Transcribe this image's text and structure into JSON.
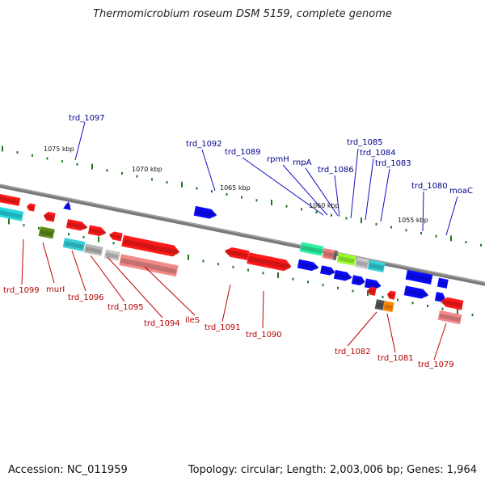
{
  "title": "Thermomicrobium roseum DSM 5159, complete genome",
  "footer": {
    "accession": "Accession: NC_011959",
    "summary": "Topology: circular; Length: 2,003,006 bp; Genes: 1,964"
  },
  "scale_labels": [
    "1075 kbp",
    "1070 kbp",
    "1065 kbp",
    "1060 kbp",
    "1055 kbp"
  ],
  "upper_gene_labels": [
    "trd_1097",
    "trd_1092",
    "trd_1089",
    "rpmH",
    "rnpA",
    "trd_1086",
    "trd_1085",
    "trd_1084",
    "trd_1083",
    "trd_1080",
    "moaC"
  ],
  "lower_gene_labels": [
    "trd_1099",
    "murI",
    "trd_1096",
    "trd_1095",
    "trd_1094",
    "ileS",
    "trd_1091",
    "trd_1090",
    "trd_1082",
    "trd_1081",
    "trd_1079"
  ],
  "colors": {
    "upper_label": "#00008b",
    "lower_label": "#b30000",
    "backbone": "#888888",
    "tick": "#1f7a1f"
  }
}
